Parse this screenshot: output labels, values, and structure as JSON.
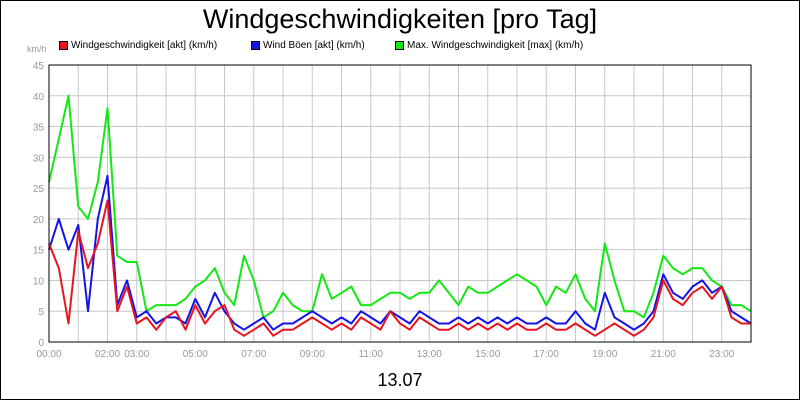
{
  "chart_data": {
    "type": "line",
    "title": "Windgeschwindigkeiten [pro Tag]",
    "ylabel": "km/h",
    "date_label": "13.07",
    "ylim": [
      0,
      45
    ],
    "yticks": [
      0,
      5,
      10,
      15,
      20,
      25,
      30,
      35,
      40,
      45
    ],
    "xlim": [
      "00:00",
      "24:00"
    ],
    "xticks": [
      "00:00",
      "02:00",
      "03:00",
      "05:00",
      "07:00",
      "09:00",
      "11:00",
      "13:00",
      "15:00",
      "17:00",
      "19:00",
      "21:00",
      "23:00"
    ],
    "grid": true,
    "legend_position": "top",
    "x": [
      "00:00",
      "00:20",
      "00:40",
      "01:00",
      "01:20",
      "01:40",
      "02:00",
      "02:20",
      "02:40",
      "03:00",
      "03:20",
      "03:40",
      "04:00",
      "04:20",
      "04:40",
      "05:00",
      "05:20",
      "05:40",
      "06:00",
      "06:20",
      "06:40",
      "07:00",
      "07:20",
      "07:40",
      "08:00",
      "08:20",
      "08:40",
      "09:00",
      "09:20",
      "09:40",
      "10:00",
      "10:20",
      "10:40",
      "11:00",
      "11:20",
      "11:40",
      "12:00",
      "12:20",
      "12:40",
      "13:00",
      "13:20",
      "13:40",
      "14:00",
      "14:20",
      "14:40",
      "15:00",
      "15:20",
      "15:40",
      "16:00",
      "16:20",
      "16:40",
      "17:00",
      "17:20",
      "17:40",
      "18:00",
      "18:20",
      "18:40",
      "19:00",
      "19:20",
      "19:40",
      "20:00",
      "20:20",
      "20:40",
      "21:00",
      "21:20",
      "21:40",
      "22:00",
      "22:20",
      "22:40",
      "23:00",
      "23:20",
      "23:40",
      "24:00"
    ],
    "series": [
      {
        "name": "Windgeschwindigkeit [akt] (km/h)",
        "color": "#e8141e",
        "values": [
          16,
          12,
          3,
          18,
          12,
          16,
          23,
          5,
          9,
          3,
          4,
          2,
          4,
          5,
          2,
          6,
          3,
          5,
          6,
          2,
          1,
          2,
          3,
          1,
          2,
          2,
          3,
          4,
          3,
          2,
          3,
          2,
          4,
          3,
          2,
          5,
          3,
          2,
          4,
          3,
          2,
          2,
          3,
          2,
          3,
          2,
          3,
          2,
          3,
          2,
          2,
          3,
          2,
          2,
          3,
          2,
          1,
          2,
          3,
          2,
          1,
          2,
          4,
          10,
          7,
          6,
          8,
          9,
          7,
          9,
          4,
          3,
          3
        ]
      },
      {
        "name": "Wind Böen [akt] (km/h)",
        "color": "#1414e8",
        "values": [
          15,
          20,
          15,
          19,
          5,
          20,
          27,
          6,
          10,
          4,
          5,
          3,
          4,
          4,
          3,
          7,
          4,
          8,
          5,
          3,
          2,
          3,
          4,
          2,
          3,
          3,
          4,
          5,
          4,
          3,
          4,
          3,
          5,
          4,
          3,
          5,
          4,
          3,
          5,
          4,
          3,
          3,
          4,
          3,
          4,
          3,
          4,
          3,
          4,
          3,
          3,
          4,
          3,
          3,
          5,
          3,
          2,
          8,
          4,
          3,
          2,
          3,
          5,
          11,
          8,
          7,
          9,
          10,
          8,
          9,
          5,
          4,
          3
        ]
      },
      {
        "name": "Max. Windgeschwindigkeit [max] (km/h)",
        "color": "#14e814",
        "values": [
          26,
          33,
          40,
          22,
          20,
          26,
          38,
          14,
          13,
          13,
          5,
          6,
          6,
          6,
          7,
          9,
          10,
          12,
          8,
          6,
          14,
          10,
          4,
          5,
          8,
          6,
          5,
          5,
          11,
          7,
          8,
          9,
          6,
          6,
          7,
          8,
          8,
          7,
          8,
          8,
          10,
          8,
          6,
          9,
          8,
          8,
          9,
          10,
          11,
          10,
          9,
          6,
          9,
          8,
          11,
          7,
          5,
          16,
          10,
          5,
          5,
          4,
          8,
          14,
          12,
          11,
          12,
          12,
          10,
          9,
          6,
          6,
          5
        ]
      }
    ]
  }
}
